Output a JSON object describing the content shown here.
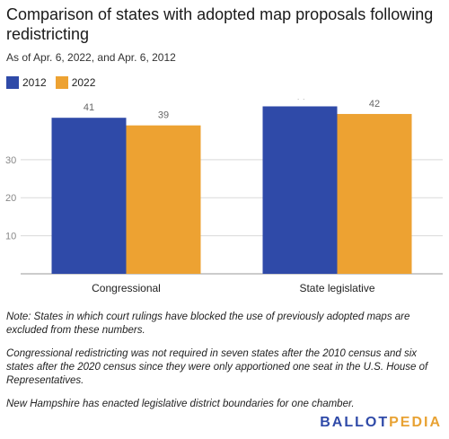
{
  "title": "Comparison of states with adopted map proposals following redistricting",
  "subtitle": "As of Apr. 6, 2022, and Apr. 6, 2012",
  "colors": {
    "s2012": "#2f4aa8",
    "s2022": "#eda232",
    "grid": "#d9d9d9",
    "axis": "#999999"
  },
  "chart_data": {
    "type": "bar",
    "categories": [
      "Congressional",
      "State legislative"
    ],
    "series": [
      {
        "name": "2012",
        "values": [
          41,
          44
        ],
        "color": "#2f4aa8"
      },
      {
        "name": "2022",
        "values": [
          39,
          42
        ],
        "color": "#eda232"
      }
    ],
    "ylim": [
      0,
      46
    ],
    "yticks": [
      10,
      20,
      30
    ],
    "grid": true,
    "legend": "top-left"
  },
  "notes": [
    "Note: States in which court rulings have blocked the use of previously adopted maps are excluded from these numbers.",
    "Congressional redistricting was not required in seven states after the 2010 census and six states after the 2020 census since they were only apportioned one seat in the U.S. House of Representatives.",
    "New Hampshire has enacted legislative district boundaries for one chamber."
  ],
  "logo": {
    "part1": "BALLOT",
    "part2": "PEDIA"
  }
}
